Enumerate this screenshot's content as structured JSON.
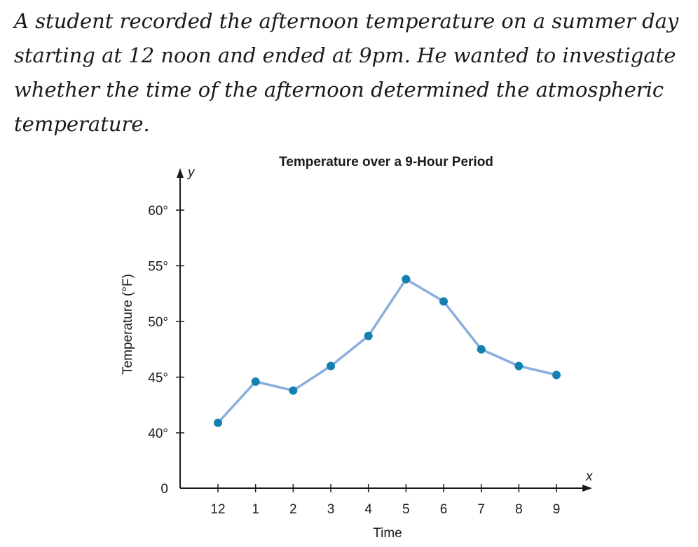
{
  "question": {
    "text": "A student recorded the afternoon temperature on a summer day starting at 12 noon and ended at 9pm. He wanted to investigate whether the time of the afternoon determined the atmospheric temperature."
  },
  "chart_data": {
    "type": "line",
    "title": "Temperature over a 9-Hour Period",
    "xlabel": "Time",
    "ylabel": "Temperature (°F)",
    "x_axis_var": "x",
    "y_axis_var": "y",
    "categories": [
      "12",
      "1",
      "2",
      "3",
      "4",
      "5",
      "6",
      "7",
      "8",
      "9"
    ],
    "values": [
      40.9,
      44.6,
      43.8,
      46.0,
      48.7,
      53.8,
      51.8,
      47.5,
      46.0,
      45.2
    ],
    "y_ticks": [
      {
        "value": 0,
        "label": "0"
      },
      {
        "value": 40,
        "label": "40°"
      },
      {
        "value": 45,
        "label": "45°"
      },
      {
        "value": 50,
        "label": "50°"
      },
      {
        "value": 55,
        "label": "55°"
      },
      {
        "value": 60,
        "label": "60°"
      }
    ],
    "y_break": true,
    "ylim": [
      35,
      62
    ],
    "grid": false,
    "colors": {
      "line": "#8aaedd",
      "marker": "#1480b0",
      "axis": "#1a1a1a"
    }
  }
}
